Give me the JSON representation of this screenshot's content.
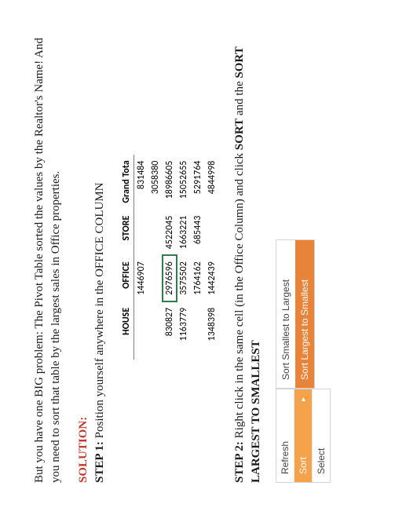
{
  "intro": "But you have one BIG problem: The Pivot Table sorted the values by the Realtor's Name! And you need to sort that table by the largest sales in Office properties.",
  "solution_label": "SOLUTION:",
  "step1_label": "STEP 1:",
  "step1_text": " Position yourself anywhere in the OFFICE COLUMN",
  "step2_label": "STEP 2:",
  "step2_text_a": " Right click in the same cell (in the Office Column) and click ",
  "step2_bold_a": "SORT",
  "step2_text_b": " and the ",
  "step2_bold_b": "SORT LARGEST TO SMALLEST",
  "pivot": {
    "headers": [
      "",
      "HOUSE",
      "OFFICE",
      "STORE",
      "Grand Tota"
    ],
    "rows": [
      [
        "",
        "",
        "1446907",
        "",
        "831484"
      ],
      [
        "",
        "",
        "",
        "",
        "3058380"
      ],
      [
        "",
        "830827",
        "2976596",
        "4522045",
        "18986605"
      ],
      [
        "",
        "1163779",
        "3575502",
        "1663221",
        "15052655"
      ],
      [
        "",
        "",
        "1764162",
        "685443",
        "5291764"
      ],
      [
        "",
        "1348398",
        "1442439",
        "",
        "4844998"
      ]
    ],
    "highlight": {
      "row": 2,
      "col": 2
    }
  },
  "context_menu": {
    "items": [
      {
        "label": "Refresh",
        "highlight": false,
        "caret": false
      },
      {
        "label": "Sort",
        "highlight": true,
        "caret": true
      },
      {
        "label": "Select",
        "highlight": false,
        "caret": false
      }
    ]
  },
  "sub_menu": {
    "items": [
      {
        "label": "Sort Smallest to Largest",
        "highlight": false
      },
      {
        "label": "Sort Largest to Smallest",
        "highlight": true
      }
    ]
  },
  "colors": {
    "solution": "#c0392b",
    "highlight_border": "#2e7d4f",
    "menu_orange_light": "#f5a24a",
    "menu_orange_dark": "#e8833a"
  }
}
